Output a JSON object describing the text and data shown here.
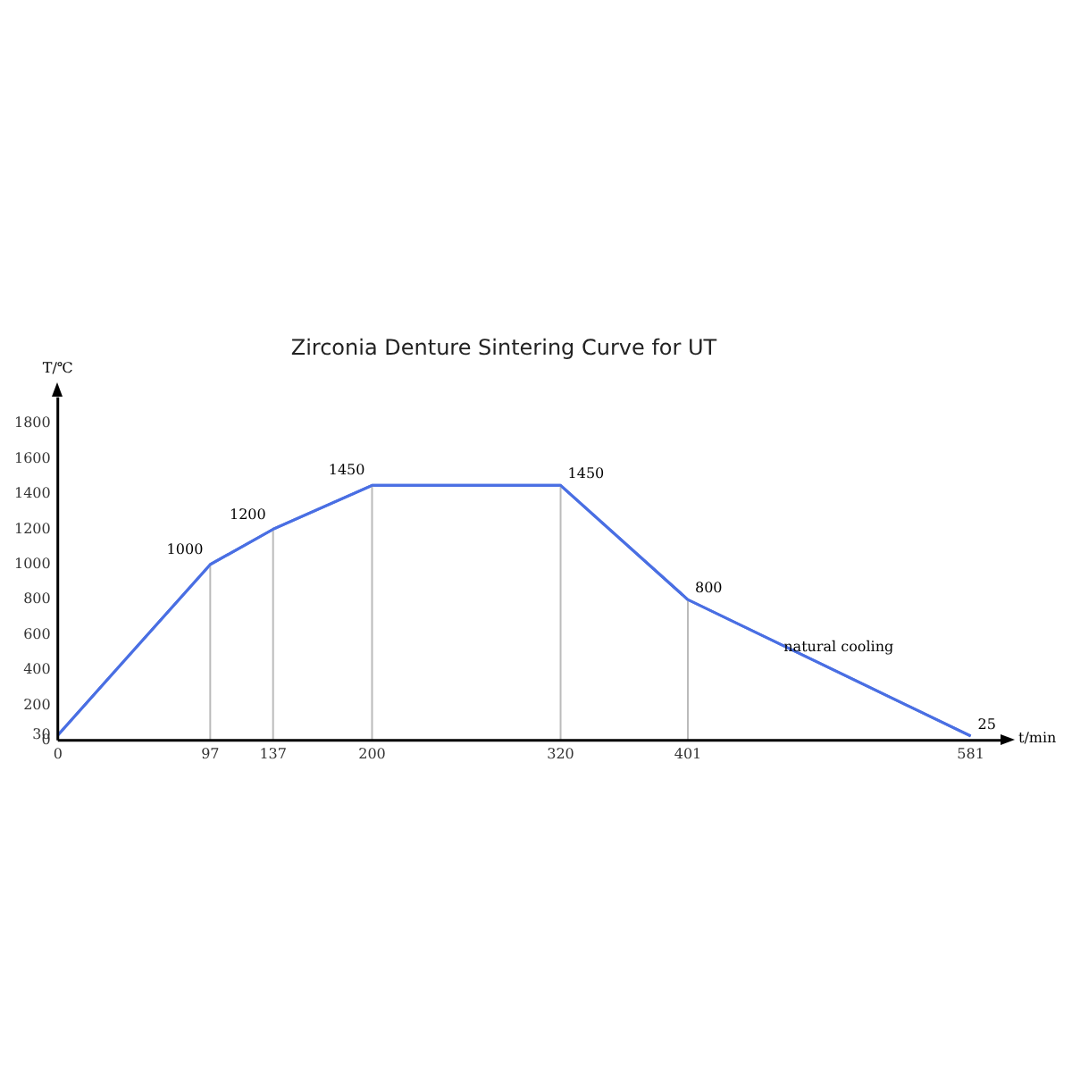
{
  "chart_data": {
    "type": "line",
    "title": "Zirconia Denture Sintering Curve for UT",
    "xlabel": "t/min",
    "ylabel": "T/℃",
    "x": [
      0,
      97,
      137,
      200,
      320,
      401,
      581
    ],
    "series": [
      {
        "color": "#4a6fe3",
        "values": [
          30,
          1000,
          1200,
          1450,
          1450,
          800,
          25
        ],
        "value_labels": [
          null,
          "1000",
          "1200",
          "1450",
          "1450",
          "800",
          "25"
        ]
      }
    ],
    "xlim": [
      0,
      600
    ],
    "xticks": [
      0,
      97,
      137,
      200,
      320,
      401,
      581
    ],
    "ylim": [
      0,
      1950
    ],
    "yticks": [
      0,
      30,
      200,
      400,
      600,
      800,
      1000,
      1200,
      1400,
      1600,
      1800
    ],
    "ref_lines": [
      {
        "axis": "x",
        "value": 97,
        "color": "#bbbbbb"
      },
      {
        "axis": "x",
        "value": 137,
        "color": "#bbbbbb"
      },
      {
        "axis": "x",
        "value": 200,
        "color": "#bbbbbb"
      },
      {
        "axis": "x",
        "value": 320,
        "color": "#bbbbbb"
      },
      {
        "axis": "x",
        "value": 401,
        "color": "#bbbbbb"
      }
    ],
    "annotations": [
      "natural cooling"
    ],
    "grid": false,
    "legend": false,
    "marker": "none",
    "line_style": "solid"
  }
}
